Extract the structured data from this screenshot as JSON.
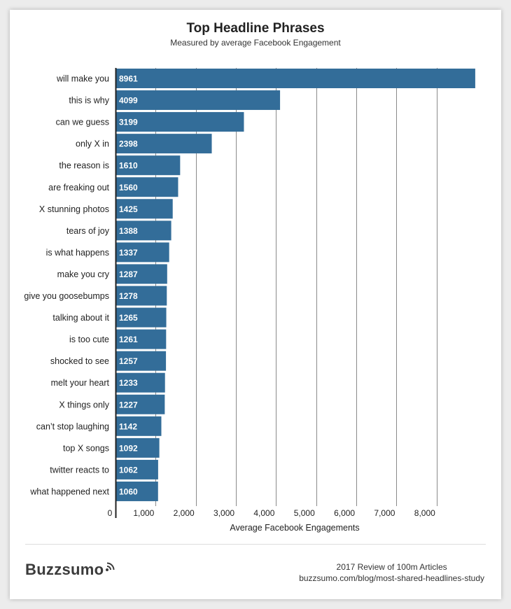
{
  "chart_data": {
    "type": "bar",
    "orientation": "horizontal",
    "title": "Top Headline Phrases",
    "subtitle": "Measured by average Facebook Engagement",
    "xlabel": "Average Facebook Engagements",
    "ylabel": "",
    "xlim": [
      0,
      9000
    ],
    "xticks": [
      0,
      1000,
      2000,
      3000,
      4000,
      5000,
      6000,
      7000,
      8000
    ],
    "xtick_labels": [
      "0",
      "1,000",
      "2,000",
      "3,000",
      "4,000",
      "5,000",
      "6,000",
      "7,000",
      "8,000"
    ],
    "grid": "vertical",
    "legend": "none",
    "data_labels": "inside-bar-start",
    "categories": [
      "will make you",
      "this is why",
      "can we guess",
      "only X in",
      "the reason is",
      "are freaking out",
      "X stunning photos",
      "tears of joy",
      "is what happens",
      "make you cry",
      "give you goosebumps",
      "talking about it",
      "is too cute",
      "shocked to see",
      "melt your heart",
      "X things only",
      "can’t stop laughing",
      "top X songs",
      "twitter reacts to",
      "what happened next"
    ],
    "values": [
      8961,
      4099,
      3199,
      2398,
      1610,
      1560,
      1425,
      1388,
      1337,
      1287,
      1278,
      1265,
      1261,
      1257,
      1233,
      1227,
      1142,
      1092,
      1062,
      1060
    ]
  },
  "colors": {
    "bar": "#336d99",
    "grid": "#8a8a8a",
    "axis": "#222222",
    "text": "#222222"
  },
  "footer": {
    "brand": "Buzzsumo",
    "brand_icon": "signal-waves-icon",
    "line1": "2017 Review of 100m Articles",
    "line2": "buzzsumo.com/blog/most-shared-headlines-study"
  }
}
